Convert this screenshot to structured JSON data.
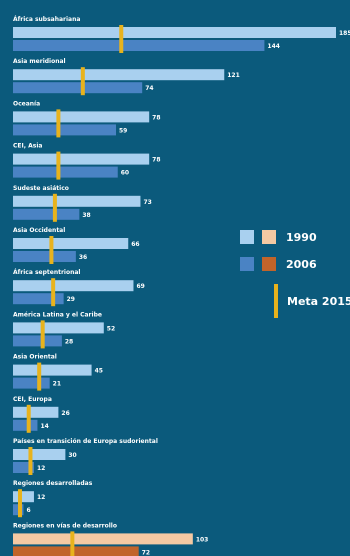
{
  "chart_data": {
    "type": "bar",
    "categories": [
      "África subsahariana",
      "Asia meridional",
      "Oceanía",
      "CEI, Asia",
      "Sudeste asiático",
      "Asia Occidental",
      "África septentrional",
      "América Latina y el Caribe",
      "Asia Oriental",
      "CEI, Europa",
      "Países en transición de Europa sudoriental",
      "Regiones desarrolladas",
      "Regiones en vías de desarrollo"
    ],
    "series": [
      {
        "name": "1990",
        "values": [
          185,
          121,
          78,
          78,
          73,
          66,
          69,
          52,
          45,
          26,
          30,
          12,
          103
        ]
      },
      {
        "name": "2006",
        "values": [
          144,
          74,
          59,
          60,
          38,
          36,
          29,
          28,
          21,
          14,
          12,
          6,
          72
        ]
      },
      {
        "name": "Meta 2015",
        "values": [
          62,
          40,
          26,
          26,
          24,
          22,
          23,
          17,
          15,
          9,
          10,
          4,
          34
        ]
      }
    ],
    "highlight_category": "Regiones en vías de desarrollo",
    "xlim": [
      0,
      185
    ],
    "legend": {
      "position": "right",
      "items": [
        "1990",
        "2006",
        "Meta 2015"
      ]
    },
    "colors": {
      "background": "#0b5a7c",
      "bar_1990": "#a9d0ef",
      "bar_2006": "#4a83c4",
      "bar_1990_highlight": "#f4c9a3",
      "bar_2006_highlight": "#c1642a",
      "target": "#e8b31d",
      "text": "#ffffff"
    }
  }
}
